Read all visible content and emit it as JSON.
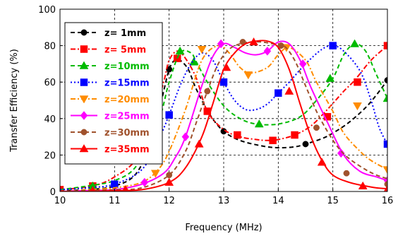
{
  "chart_data": {
    "type": "line",
    "xlabel": "Frequency (MHz)",
    "ylabel": "Transfer Efficiency  (%)",
    "xlim": [
      10,
      16
    ],
    "ylim": [
      0,
      100
    ],
    "xticks": [
      10,
      11,
      12,
      13,
      14,
      15,
      16
    ],
    "yticks": [
      0,
      20,
      40,
      60,
      80,
      100
    ],
    "grid": true,
    "legend_position": "top-left",
    "series": [
      {
        "name": "z= 1mm",
        "color": "#000000",
        "dash": "dash",
        "marker": "circle",
        "x": [
          10,
          10.5,
          11,
          11.4,
          11.7,
          11.9,
          12,
          12.1,
          12.2,
          12.35,
          12.5,
          12.75,
          13,
          13.3,
          13.7,
          14,
          14.3,
          14.5,
          14.8,
          15,
          15.3,
          15.6,
          15.8,
          16
        ],
        "y": [
          0.5,
          1,
          3,
          10,
          30,
          55,
          67,
          72,
          72,
          67,
          56,
          42,
          33,
          28,
          25,
          24,
          24.5,
          26,
          29,
          32,
          38,
          46,
          53,
          61
        ],
        "markers": [
          [
            10,
            0.5
          ],
          [
            11,
            3
          ],
          [
            12,
            67
          ],
          [
            13,
            33
          ],
          [
            14.5,
            26
          ],
          [
            16,
            61
          ]
        ]
      },
      {
        "name": "z= 5mm",
        "color": "#ff0000",
        "dash": "dashdot",
        "marker": "square",
        "x": [
          10,
          10.6,
          11,
          11.4,
          11.7,
          11.9,
          12,
          12.15,
          12.3,
          12.5,
          12.7,
          13,
          13.3,
          13.6,
          13.8,
          14,
          14.3,
          14.6,
          14.9,
          15.2,
          15.4,
          15.7,
          16
        ],
        "y": [
          1,
          3,
          8,
          18,
          40,
          60,
          72,
          77,
          73,
          62,
          44,
          34,
          30,
          28.5,
          28,
          28.5,
          31,
          36,
          45,
          55,
          61,
          72,
          80
        ],
        "markers": [
          [
            10,
            1
          ],
          [
            10.6,
            3
          ],
          [
            12.15,
            73
          ],
          [
            12.7,
            44
          ],
          [
            13.25,
            31
          ],
          [
            13.9,
            28
          ],
          [
            14.3,
            31
          ],
          [
            14.9,
            41
          ],
          [
            15.45,
            60
          ],
          [
            16,
            80
          ]
        ]
      },
      {
        "name": "z=10mm",
        "color": "#00bb00",
        "dash": "dash",
        "marker": "triangle",
        "x": [
          10,
          10.5,
          11,
          11.4,
          11.8,
          12,
          12.2,
          12.4,
          12.5,
          12.7,
          13,
          13.3,
          13.6,
          14,
          14.4,
          14.7,
          15,
          15.2,
          15.4,
          15.6,
          15.8,
          16
        ],
        "y": [
          1,
          3,
          6,
          14,
          38,
          60,
          76,
          76,
          71,
          60,
          47,
          40,
          37,
          37,
          41,
          50,
          62,
          75,
          81,
          77,
          64,
          51
        ],
        "markers": [
          [
            10.6,
            3
          ],
          [
            11.6,
            19
          ],
          [
            12.2,
            77
          ],
          [
            12.45,
            71
          ],
          [
            13.65,
            37
          ],
          [
            14.95,
            62
          ],
          [
            15.4,
            81
          ],
          [
            16,
            51
          ]
        ]
      },
      {
        "name": "z=15mm",
        "color": "#0000ff",
        "dash": "dot",
        "marker": "square",
        "x": [
          10,
          10.5,
          11,
          11.5,
          11.8,
          12,
          12.2,
          12.4,
          12.6,
          12.8,
          13,
          13.2,
          13.4,
          13.6,
          13.8,
          14,
          14.2,
          14.5,
          14.8,
          15,
          15.2,
          15.5,
          15.7,
          15.85,
          16
        ],
        "y": [
          1,
          2,
          4,
          12,
          28,
          42,
          58,
          70,
          76,
          72,
          60,
          50,
          45,
          45,
          48,
          54,
          60,
          70,
          78,
          80,
          77,
          66,
          50,
          35,
          26
        ],
        "markers": [
          [
            11,
            4
          ],
          [
            12,
            42
          ],
          [
            13,
            60
          ],
          [
            14,
            54
          ],
          [
            15,
            80
          ],
          [
            16,
            26
          ]
        ]
      },
      {
        "name": "z=20mm",
        "color": "#ff8c00",
        "dash": "dashdot",
        "marker": "triangle-down",
        "x": [
          10,
          10.5,
          11,
          11.5,
          11.8,
          12,
          12.3,
          12.6,
          12.9,
          13.1,
          13.3,
          13.5,
          13.8,
          14,
          14.2,
          14.5,
          14.7,
          15,
          15.2,
          15.5,
          15.7,
          16
        ],
        "y": [
          0,
          1,
          2,
          5,
          12,
          22,
          45,
          72,
          80,
          76,
          68,
          65,
          68,
          75,
          79,
          72,
          60,
          44,
          32,
          22,
          17,
          12
        ],
        "markers": [
          [
            11.75,
            10
          ],
          [
            12.6,
            78
          ],
          [
            13.45,
            64
          ],
          [
            14.15,
            79
          ],
          [
            15.45,
            47
          ],
          [
            16,
            12
          ]
        ]
      },
      {
        "name": "z=25mm",
        "color": "#ff00ff",
        "dash": "solid",
        "marker": "diamond",
        "x": [
          10,
          10.5,
          11,
          11.5,
          11.9,
          12.1,
          12.3,
          12.6,
          12.8,
          13,
          13.2,
          13.4,
          13.6,
          13.8,
          14,
          14.2,
          14.4,
          14.6,
          14.9,
          15.2,
          15.5,
          15.8,
          16
        ],
        "y": [
          0,
          0.5,
          1,
          4,
          10,
          18,
          30,
          58,
          74,
          81,
          79,
          76,
          75,
          77,
          82,
          81,
          72,
          57,
          38,
          20,
          11,
          8,
          6
        ],
        "markers": [
          [
            11.55,
            5
          ],
          [
            12.3,
            30
          ],
          [
            12.95,
            81
          ],
          [
            13.8,
            77
          ],
          [
            14.45,
            70
          ],
          [
            15.15,
            21
          ],
          [
            16,
            6
          ]
        ]
      },
      {
        "name": "z=30mm",
        "color": "#a0522d",
        "dash": "dash",
        "marker": "circle",
        "x": [
          10,
          10.5,
          11,
          11.5,
          12,
          12.3,
          12.5,
          12.7,
          12.9,
          13.1,
          13.3,
          13.5,
          13.7,
          13.9,
          14.1,
          14.3,
          14.5,
          14.7,
          14.9,
          15.1,
          15.3,
          15.6,
          15.8,
          16
        ],
        "y": [
          0,
          0.5,
          1,
          2,
          9,
          22,
          38,
          55,
          70,
          78,
          81,
          82,
          82,
          81,
          80,
          72,
          58,
          44,
          33,
          24,
          18,
          12,
          9,
          7
        ],
        "markers": [
          [
            12,
            9
          ],
          [
            12.7,
            55
          ],
          [
            13.35,
            82
          ],
          [
            14.05,
            80
          ],
          [
            14.7,
            35
          ],
          [
            15.25,
            10
          ],
          [
            16,
            4
          ]
        ]
      },
      {
        "name": "z=35mm",
        "color": "#ff0000",
        "dash": "solid",
        "marker": "triangle",
        "x": [
          10,
          10.5,
          11,
          11.5,
          12,
          12.3,
          12.6,
          12.8,
          13,
          13.2,
          13.4,
          13.6,
          13.8,
          14,
          14.2,
          14.4,
          14.6,
          14.8,
          15,
          15.3,
          15.6,
          15.8,
          16
        ],
        "y": [
          0,
          0,
          0.5,
          1,
          5,
          13,
          30,
          48,
          67,
          76,
          81,
          82.5,
          82.5,
          79,
          67,
          48,
          30,
          17,
          9,
          5,
          3,
          2,
          1.5
        ],
        "markers": [
          [
            10.6,
            0.5
          ],
          [
            11.2,
            1
          ],
          [
            12,
            5
          ],
          [
            12.55,
            26
          ],
          [
            13.05,
            68
          ],
          [
            13.55,
            82
          ],
          [
            14.2,
            55
          ],
          [
            14.8,
            16
          ],
          [
            15.55,
            3
          ],
          [
            16,
            1
          ]
        ]
      }
    ]
  }
}
